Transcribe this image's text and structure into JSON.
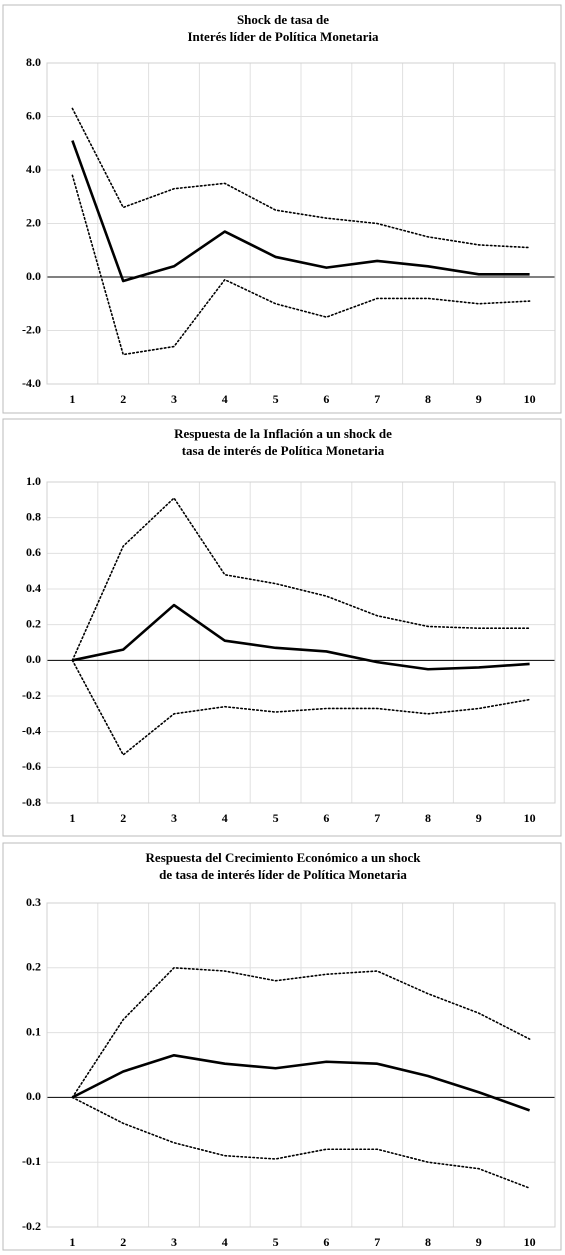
{
  "chart_data": [
    {
      "type": "line",
      "title": [
        "Shock de tasa de",
        "Interés líder de Política Monetaria"
      ],
      "categories": [
        "1",
        "2",
        "3",
        "4",
        "5",
        "6",
        "7",
        "8",
        "9",
        "10"
      ],
      "series": [
        {
          "color": "#000000",
          "dashed": false,
          "values": [
            5.1,
            -0.15,
            0.4,
            1.7,
            0.75,
            0.35,
            0.6,
            0.4,
            0.1,
            0.1
          ]
        },
        {
          "color": "#000000",
          "dashed": true,
          "values": [
            6.3,
            2.6,
            3.3,
            3.5,
            2.5,
            2.2,
            2.0,
            1.5,
            1.2,
            1.1
          ]
        },
        {
          "color": "#000000",
          "dashed": true,
          "values": [
            3.8,
            -2.9,
            -2.6,
            -0.1,
            -1.0,
            -1.5,
            -0.8,
            -0.8,
            -1.0,
            -0.9
          ]
        }
      ],
      "ylim": [
        -4,
        8
      ],
      "yticks": [
        {
          "value": -4,
          "label": "-4.0"
        },
        {
          "value": -2,
          "label": "-2.0"
        },
        {
          "value": 0,
          "label": "0.0"
        },
        {
          "value": 2,
          "label": "2.0"
        },
        {
          "value": 4,
          "label": "4.0"
        },
        {
          "value": 6,
          "label": "6.0"
        },
        {
          "value": 8,
          "label": "8.0"
        }
      ],
      "grid": true
    },
    {
      "type": "line",
      "title": [
        "Respuesta de la Inflación a un shock de",
        "tasa de interés de Política Monetaria"
      ],
      "categories": [
        "1",
        "2",
        "3",
        "4",
        "5",
        "6",
        "7",
        "8",
        "9",
        "10"
      ],
      "series": [
        {
          "color": "#000000",
          "dashed": false,
          "values": [
            0,
            0.06,
            0.31,
            0.11,
            0.07,
            0.05,
            -0.01,
            -0.05,
            -0.04,
            -0.02
          ]
        },
        {
          "color": "#000000",
          "dashed": true,
          "values": [
            0,
            0.64,
            0.91,
            0.48,
            0.43,
            0.36,
            0.25,
            0.19,
            0.18,
            0.18
          ]
        },
        {
          "color": "#000000",
          "dashed": true,
          "values": [
            0,
            -0.53,
            -0.3,
            -0.26,
            -0.29,
            -0.27,
            -0.27,
            -0.3,
            -0.27,
            -0.22
          ]
        }
      ],
      "ylim": [
        -0.8,
        1.0
      ],
      "yticks": [
        -0.8,
        -0.6,
        -0.4,
        -0.2,
        {
          "value": 0,
          "label": "0.0"
        },
        0.2,
        0.4,
        0.6,
        0.8,
        {
          "value": 1,
          "label": "1.0"
        }
      ],
      "grid": true
    },
    {
      "type": "line",
      "title": [
        "Respuesta del Crecimiento Económico a un shock",
        "de tasa de interés líder de Política Monetaria"
      ],
      "categories": [
        "1",
        "2",
        "3",
        "4",
        "5",
        "6",
        "7",
        "8",
        "9",
        "10"
      ],
      "series": [
        {
          "color": "#000000",
          "dashed": false,
          "values": [
            0,
            0.04,
            0.065,
            0.052,
            0.045,
            0.055,
            0.052,
            0.033,
            0.008,
            -0.02
          ]
        },
        {
          "color": "#000000",
          "dashed": true,
          "values": [
            0,
            0.12,
            0.2,
            0.195,
            0.18,
            0.19,
            0.195,
            0.16,
            0.13,
            0.09
          ]
        },
        {
          "color": "#000000",
          "dashed": true,
          "values": [
            0,
            -0.04,
            -0.07,
            -0.09,
            -0.095,
            -0.08,
            -0.08,
            -0.1,
            -0.11,
            -0.14
          ]
        }
      ],
      "ylim": [
        -0.2,
        0.3
      ],
      "yticks": [
        -0.2,
        -0.1,
        {
          "value": 0,
          "label": "0.0"
        },
        0.1,
        0.2,
        0.3
      ],
      "grid": true
    }
  ]
}
